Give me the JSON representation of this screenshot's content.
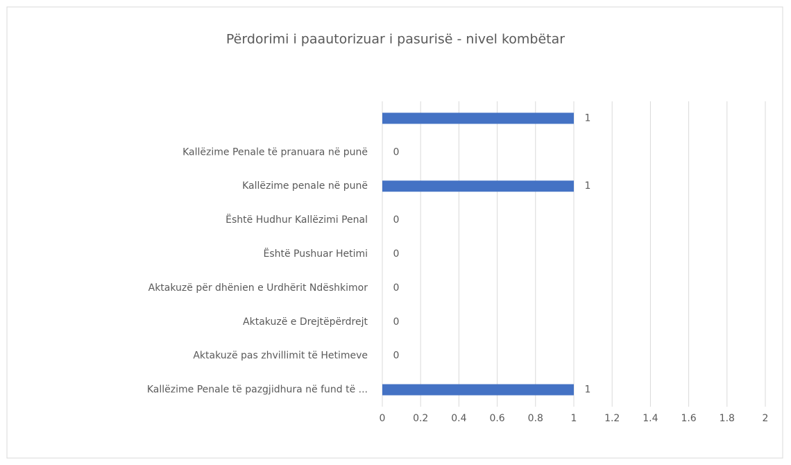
{
  "chart_data": {
    "type": "bar",
    "orientation": "horizontal",
    "title": "Përdorimi i paautorizuar i pasurisë - nivel kombëtar",
    "categories": [
      null,
      "Kallëzime Penale të pranuara në punë",
      "Kallëzime penale në punë",
      "Është Hudhur Kallëzimi Penal",
      "Është Pushuar Hetimi",
      "Aktakuzë për dhënien e Urdhërit Ndëshkimor",
      "Aktakuzë e Drejtëpërdrejt",
      "Aktakuzë pas zhvillimit të Hetimeve",
      "Kallëzime Penale të pazgjidhura në fund të ..."
    ],
    "values": [
      1,
      0,
      1,
      0,
      0,
      0,
      0,
      0,
      1
    ],
    "color": "#4472c4",
    "xlim": [
      0,
      2
    ],
    "xticks": [
      0,
      0.2,
      0.4,
      0.6,
      0.8,
      1,
      1.2,
      1.4,
      1.6,
      1.8,
      2
    ],
    "grid": true
  }
}
